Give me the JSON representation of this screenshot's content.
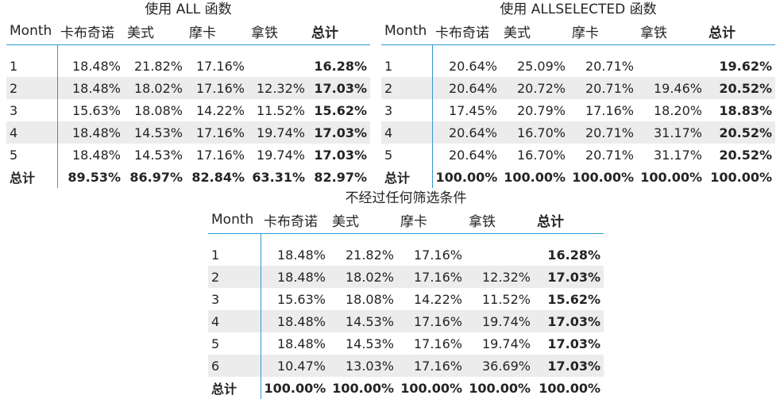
{
  "visuals": [
    {
      "title": "使用 ALL 函数",
      "headers": [
        "Month",
        "卡布奇诺",
        "美式",
        "摩卡",
        "拿铁",
        "总计"
      ],
      "rows": [
        {
          "label": "1",
          "cells": [
            "18.48%",
            "21.82%",
            "17.16%",
            "",
            "16.28%"
          ]
        },
        {
          "label": "2",
          "cells": [
            "18.48%",
            "18.02%",
            "17.16%",
            "12.32%",
            "17.03%"
          ]
        },
        {
          "label": "3",
          "cells": [
            "15.63%",
            "18.08%",
            "14.22%",
            "11.52%",
            "15.62%"
          ]
        },
        {
          "label": "4",
          "cells": [
            "18.48%",
            "14.53%",
            "17.16%",
            "19.74%",
            "17.03%"
          ]
        },
        {
          "label": "5",
          "cells": [
            "18.48%",
            "14.53%",
            "17.16%",
            "19.74%",
            "17.03%"
          ]
        }
      ],
      "grand_total": {
        "label": "总计",
        "cells": [
          "89.53%",
          "86.97%",
          "82.84%",
          "63.31%",
          "82.97%"
        ]
      }
    },
    {
      "title": "使用 ALLSELECTED 函数",
      "headers": [
        "Month",
        "卡布奇诺",
        "美式",
        "摩卡",
        "拿铁",
        "总计"
      ],
      "rows": [
        {
          "label": "1",
          "cells": [
            "20.64%",
            "25.09%",
            "20.71%",
            "",
            "19.62%"
          ]
        },
        {
          "label": "2",
          "cells": [
            "20.64%",
            "20.72%",
            "20.71%",
            "19.46%",
            "20.52%"
          ]
        },
        {
          "label": "3",
          "cells": [
            "17.45%",
            "20.79%",
            "17.16%",
            "18.20%",
            "18.83%"
          ]
        },
        {
          "label": "4",
          "cells": [
            "20.64%",
            "16.70%",
            "20.71%",
            "31.17%",
            "20.52%"
          ]
        },
        {
          "label": "5",
          "cells": [
            "20.64%",
            "16.70%",
            "20.71%",
            "31.17%",
            "20.52%"
          ]
        }
      ],
      "grand_total": {
        "label": "总计",
        "cells": [
          "100.00%",
          "100.00%",
          "100.00%",
          "100.00%",
          "100.00%"
        ]
      }
    },
    {
      "title": "不经过任何筛选条件",
      "headers": [
        "Month",
        "卡布奇诺",
        "美式",
        "摩卡",
        "拿铁",
        "总计"
      ],
      "rows": [
        {
          "label": "1",
          "cells": [
            "18.48%",
            "21.82%",
            "17.16%",
            "",
            "16.28%"
          ]
        },
        {
          "label": "2",
          "cells": [
            "18.48%",
            "18.02%",
            "17.16%",
            "12.32%",
            "17.03%"
          ]
        },
        {
          "label": "3",
          "cells": [
            "15.63%",
            "18.08%",
            "14.22%",
            "11.52%",
            "15.62%"
          ]
        },
        {
          "label": "4",
          "cells": [
            "18.48%",
            "14.53%",
            "17.16%",
            "19.74%",
            "17.03%"
          ]
        },
        {
          "label": "5",
          "cells": [
            "18.48%",
            "14.53%",
            "17.16%",
            "19.74%",
            "17.03%"
          ]
        },
        {
          "label": "6",
          "cells": [
            "10.47%",
            "13.03%",
            "17.16%",
            "36.69%",
            "17.03%"
          ]
        }
      ],
      "grand_total": {
        "label": "总计",
        "cells": [
          "100.00%",
          "100.00%",
          "100.00%",
          "100.00%",
          "100.00%"
        ]
      }
    }
  ]
}
